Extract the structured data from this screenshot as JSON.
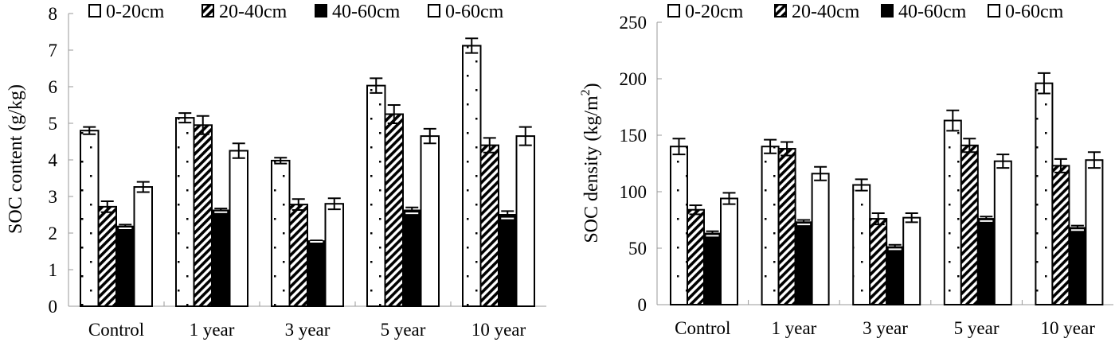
{
  "chart_data": [
    {
      "type": "bar",
      "title": "",
      "xlabel": "",
      "ylabel": "SOC content (g/kg)",
      "ylim": [
        0,
        8
      ],
      "yticks": [
        "0",
        "1",
        "2",
        "3",
        "4",
        "5",
        "6",
        "7",
        "8"
      ],
      "categories": [
        "Control",
        "1 year",
        "3 year",
        "5 year",
        "10 year"
      ],
      "legend_position": "top",
      "series": [
        {
          "name": "0-20cm",
          "pattern": "dotted",
          "values": [
            4.8,
            5.15,
            3.98,
            6.03,
            7.12
          ],
          "errors": [
            0.1,
            0.13,
            0.08,
            0.2,
            0.2
          ]
        },
        {
          "name": "20-40cm",
          "pattern": "hatched",
          "values": [
            2.72,
            4.95,
            2.78,
            5.25,
            4.4
          ],
          "errors": [
            0.15,
            0.25,
            0.15,
            0.25,
            0.2
          ]
        },
        {
          "name": "40-60cm",
          "pattern": "solid-black",
          "values": [
            2.18,
            2.62,
            1.78,
            2.62,
            2.5
          ],
          "errors": [
            0.05,
            0.05,
            0.02,
            0.08,
            0.1
          ]
        },
        {
          "name": "0-60cm",
          "pattern": "white",
          "values": [
            3.26,
            4.25,
            2.8,
            4.65,
            4.65
          ],
          "errors": [
            0.14,
            0.2,
            0.15,
            0.2,
            0.25
          ]
        }
      ]
    },
    {
      "type": "bar",
      "title": "",
      "xlabel": "",
      "ylabel": "SOC density (kg/m",
      "ylabel_superscript": "2",
      "ylabel_close": ")",
      "ylim": [
        0,
        250
      ],
      "yticks": [
        "0",
        "50",
        "100",
        "150",
        "200",
        "250"
      ],
      "categories": [
        "Control",
        "1 year",
        "3 year",
        "5 year",
        "10 year"
      ],
      "legend_position": "top",
      "series": [
        {
          "name": "0-20cm",
          "pattern": "dotted",
          "values": [
            140,
            140,
            106,
            163,
            196
          ],
          "errors": [
            7,
            6,
            5,
            9,
            9
          ]
        },
        {
          "name": "20-40cm",
          "pattern": "hatched",
          "values": [
            84,
            138,
            76,
            141,
            123
          ],
          "errors": [
            4,
            6,
            5,
            6,
            6
          ]
        },
        {
          "name": "40-60cm",
          "pattern": "solid-black",
          "values": [
            63,
            73,
            51,
            76,
            68
          ],
          "errors": [
            2,
            2,
            2,
            2,
            2
          ]
        },
        {
          "name": "0-60cm",
          "pattern": "white",
          "values": [
            94,
            116,
            77,
            127,
            128
          ],
          "errors": [
            5,
            6,
            4,
            6,
            7
          ]
        }
      ]
    }
  ]
}
